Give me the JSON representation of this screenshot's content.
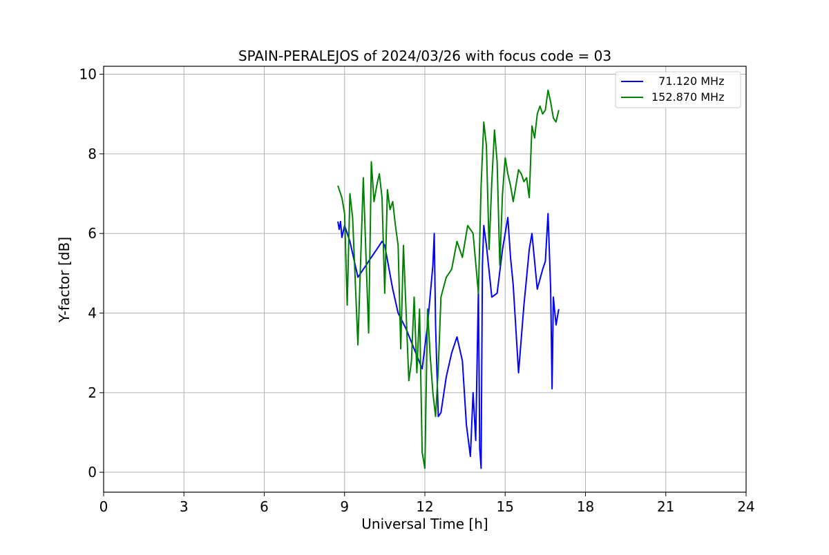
{
  "chart_data": {
    "type": "line",
    "title": "SPAIN-PERALEJOS of 2024/03/26 with focus code = 03",
    "xlabel": "Universal Time [h]",
    "ylabel": "Y-factor [dB]",
    "xlim": [
      0,
      24
    ],
    "ylim": [
      -0.5,
      10.2
    ],
    "x_ticks": [
      0,
      3,
      6,
      9,
      12,
      15,
      18,
      21,
      24
    ],
    "y_ticks": [
      0,
      2,
      4,
      6,
      8,
      10
    ],
    "grid": true,
    "legend_position": "top-right",
    "series": [
      {
        "name": "  71.120 MHz",
        "color": "#0000ff",
        "x": [
          8.75,
          8.8,
          8.85,
          8.9,
          9.0,
          9.2,
          9.5,
          9.8,
          10.0,
          10.2,
          10.4,
          10.5,
          10.8,
          11.0,
          11.3,
          11.6,
          11.9,
          12.1,
          12.3,
          12.35,
          12.4,
          12.5,
          12.6,
          12.8,
          13.0,
          13.2,
          13.4,
          13.55,
          13.7,
          13.8,
          13.9,
          14.0,
          14.05,
          14.1,
          14.15,
          14.2,
          14.3,
          14.5,
          14.7,
          14.9,
          15.1,
          15.2,
          15.3,
          15.5,
          15.7,
          15.8,
          15.9,
          16.0,
          16.2,
          16.4,
          16.5,
          16.6,
          16.7,
          16.75,
          16.8,
          16.9,
          17.0
        ],
        "y": [
          6.3,
          6.1,
          6.3,
          5.9,
          6.2,
          5.8,
          4.9,
          5.2,
          5.4,
          5.6,
          5.8,
          5.7,
          4.6,
          4.0,
          3.6,
          3.1,
          2.6,
          3.7,
          5.2,
          6.0,
          3.7,
          1.4,
          1.5,
          2.4,
          3.0,
          3.4,
          2.8,
          1.2,
          0.4,
          2.0,
          0.8,
          4.6,
          0.6,
          0.1,
          5.2,
          6.2,
          5.7,
          4.4,
          4.5,
          5.6,
          6.4,
          5.4,
          4.7,
          2.5,
          4.2,
          4.9,
          5.6,
          6.0,
          4.6,
          5.1,
          5.3,
          6.5,
          4.6,
          2.1,
          4.4,
          3.7,
          4.1
        ]
      },
      {
        "name": "152.870 MHz",
        "color": "#008000",
        "x": [
          8.75,
          8.8,
          8.9,
          9.0,
          9.1,
          9.2,
          9.3,
          9.5,
          9.7,
          9.9,
          10.0,
          10.1,
          10.2,
          10.3,
          10.4,
          10.5,
          10.6,
          10.7,
          10.8,
          10.9,
          11.0,
          11.1,
          11.2,
          11.3,
          11.4,
          11.5,
          11.6,
          11.7,
          11.8,
          11.9,
          12.0,
          12.1,
          12.2,
          12.3,
          12.4,
          12.5,
          12.6,
          12.8,
          13.0,
          13.2,
          13.4,
          13.6,
          13.8,
          14.0,
          14.1,
          14.2,
          14.3,
          14.4,
          14.5,
          14.6,
          14.7,
          14.8,
          14.9,
          15.0,
          15.1,
          15.2,
          15.3,
          15.4,
          15.5,
          15.6,
          15.7,
          15.8,
          15.9,
          16.0,
          16.1,
          16.2,
          16.3,
          16.4,
          16.5,
          16.6,
          16.7,
          16.8,
          16.9,
          17.0
        ],
        "y": [
          7.2,
          7.1,
          6.9,
          6.5,
          4.2,
          7.0,
          6.4,
          3.2,
          7.4,
          3.5,
          7.8,
          6.8,
          7.2,
          7.5,
          6.9,
          4.5,
          7.1,
          6.6,
          6.8,
          6.2,
          5.7,
          3.1,
          5.7,
          4.0,
          2.3,
          2.8,
          4.4,
          2.5,
          4.1,
          0.5,
          0.1,
          4.1,
          2.9,
          2.0,
          1.4,
          2.6,
          4.4,
          4.9,
          5.1,
          5.8,
          5.4,
          6.2,
          6.0,
          4.5,
          7.2,
          8.8,
          8.2,
          5.6,
          7.3,
          8.6,
          7.8,
          5.2,
          7.0,
          7.9,
          7.5,
          7.2,
          6.8,
          7.2,
          7.6,
          7.5,
          7.3,
          7.4,
          6.9,
          8.7,
          8.4,
          9.0,
          9.2,
          9.0,
          9.1,
          9.6,
          9.3,
          8.9,
          8.8,
          9.1
        ]
      }
    ]
  }
}
